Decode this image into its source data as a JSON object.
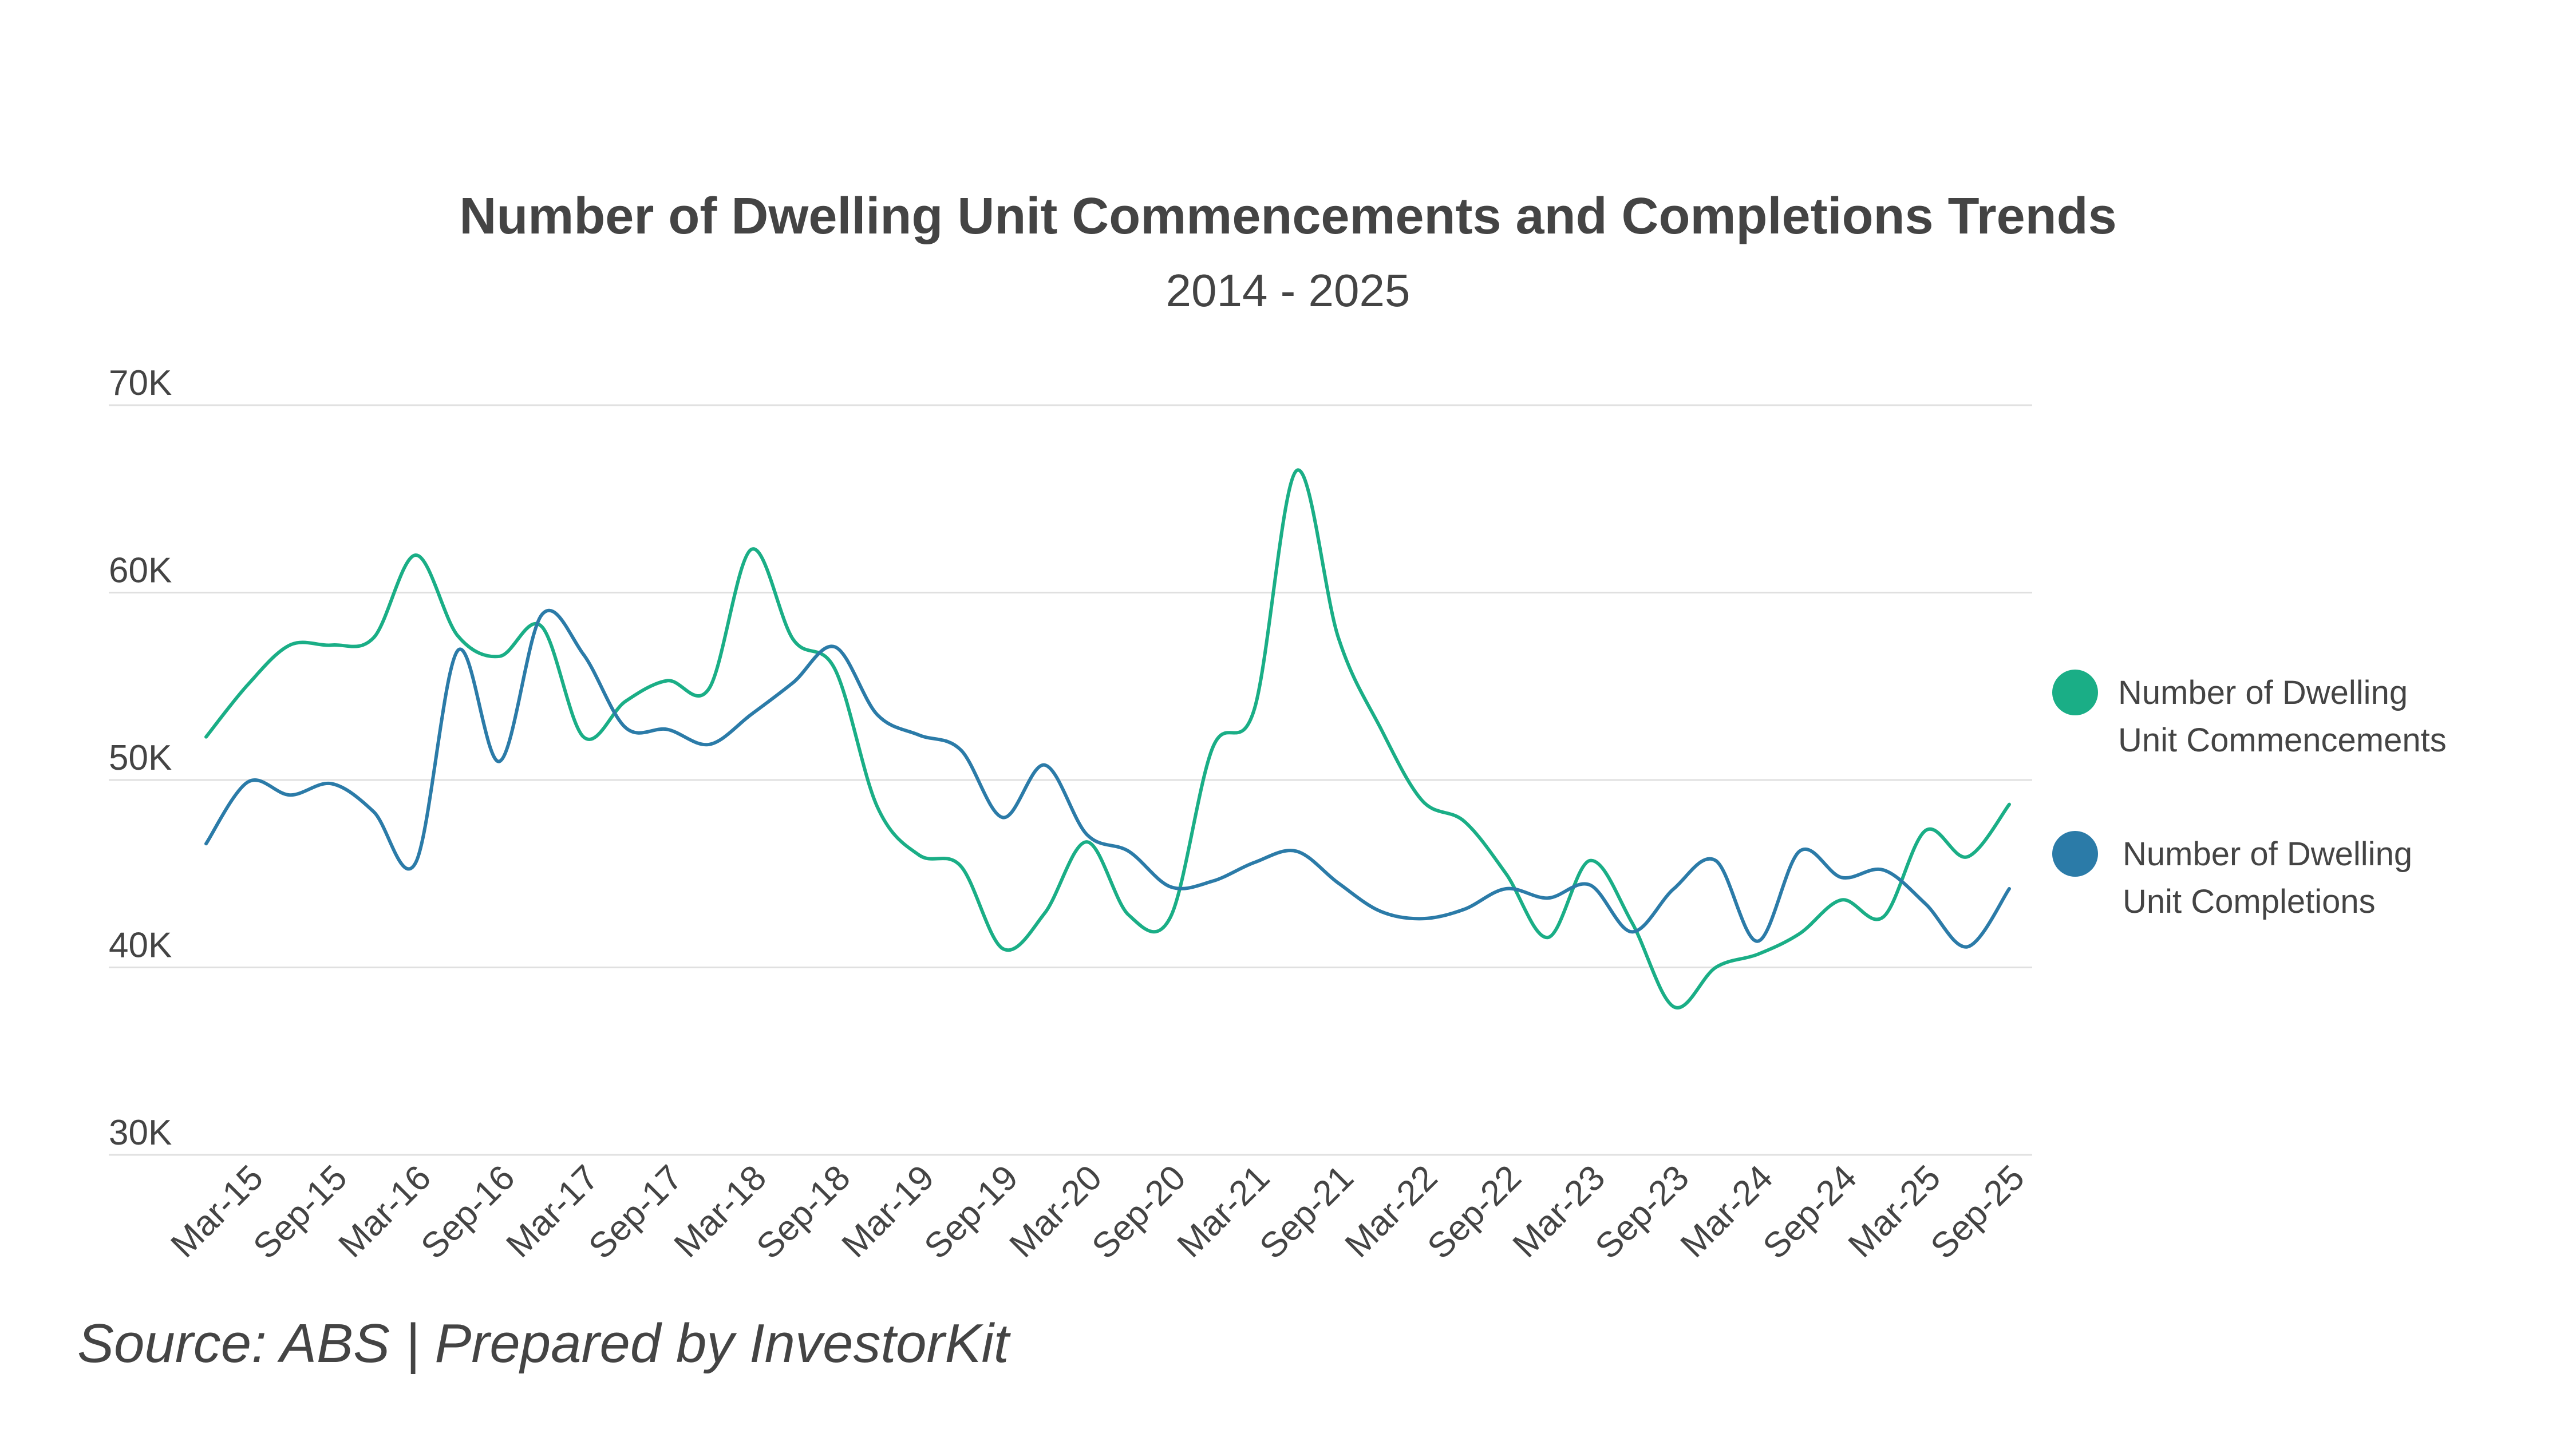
{
  "chart_data": {
    "type": "line",
    "title": "Number of Dwelling Unit Commencements and Completions Trends",
    "subtitle": "2014 - 2025",
    "source": "Source: ABS | Prepared by InvestorKit",
    "ylim": [
      30000,
      70000
    ],
    "y_ticks": [
      {
        "value": 70000,
        "label": "70K"
      },
      {
        "value": 60000,
        "label": "60K"
      },
      {
        "value": 50000,
        "label": "50K"
      },
      {
        "value": 40000,
        "label": "40K"
      },
      {
        "value": 30000,
        "label": "30K"
      }
    ],
    "grid": true,
    "legend_position": "right",
    "x": [
      "Dec-14",
      "Mar-15",
      "Jun-15",
      "Sep-15",
      "Dec-15",
      "Mar-16",
      "Jun-16",
      "Sep-16",
      "Dec-16",
      "Mar-17",
      "Jun-17",
      "Sep-17",
      "Dec-17",
      "Mar-18",
      "Jun-18",
      "Sep-18",
      "Dec-18",
      "Mar-19",
      "Jun-19",
      "Sep-19",
      "Dec-19",
      "Mar-20",
      "Jun-20",
      "Sep-20",
      "Dec-20",
      "Mar-21",
      "Jun-21",
      "Sep-21",
      "Dec-21",
      "Mar-22",
      "Jun-22",
      "Sep-22",
      "Dec-22",
      "Mar-23",
      "Jun-23",
      "Sep-23",
      "Dec-23",
      "Mar-24",
      "Jun-24",
      "Sep-24",
      "Dec-24",
      "Mar-25",
      "Jun-25",
      "Sep-25"
    ],
    "x_tick_labels": [
      "Mar-15",
      "Sep-15",
      "Mar-16",
      "Sep-16",
      "Mar-17",
      "Sep-17",
      "Mar-18",
      "Sep-18",
      "Mar-19",
      "Sep-19",
      "Mar-20",
      "Sep-20",
      "Mar-21",
      "Sep-21",
      "Mar-22",
      "Sep-22",
      "Mar-23",
      "Sep-23",
      "Mar-24",
      "Sep-24",
      "Mar-25",
      "Sep-25"
    ],
    "series": [
      {
        "name": "Number of Dwelling Unit Commencements",
        "color": "#1AAE86",
        "values": [
          52300,
          55100,
          57200,
          57200,
          57600,
          62000,
          57700,
          56600,
          58200,
          52300,
          54200,
          55300,
          54900,
          62300,
          57500,
          55900,
          48600,
          46000,
          45400,
          41000,
          42900,
          46700,
          42800,
          42700,
          51700,
          53800,
          66500,
          57600,
          52800,
          48900,
          47800,
          45000,
          41600,
          45700,
          42400,
          37900,
          40000,
          40700,
          41800,
          43600,
          42700,
          47300,
          45900,
          48700
        ]
      },
      {
        "name": "Number of Dwelling Unit Completions",
        "color": "#2B7BA8",
        "values": [
          46600,
          49900,
          49200,
          49800,
          48300,
          45600,
          56900,
          51000,
          58800,
          56700,
          52800,
          52700,
          51900,
          53500,
          55200,
          57100,
          53500,
          52400,
          51600,
          48000,
          50800,
          47100,
          46200,
          44300,
          44600,
          45600,
          46200,
          44500,
          43000,
          42600,
          43100,
          44200,
          43700,
          44400,
          41900,
          44200,
          45700,
          41400,
          46200,
          44800,
          45200,
          43400,
          41100,
          44200
        ]
      }
    ]
  }
}
